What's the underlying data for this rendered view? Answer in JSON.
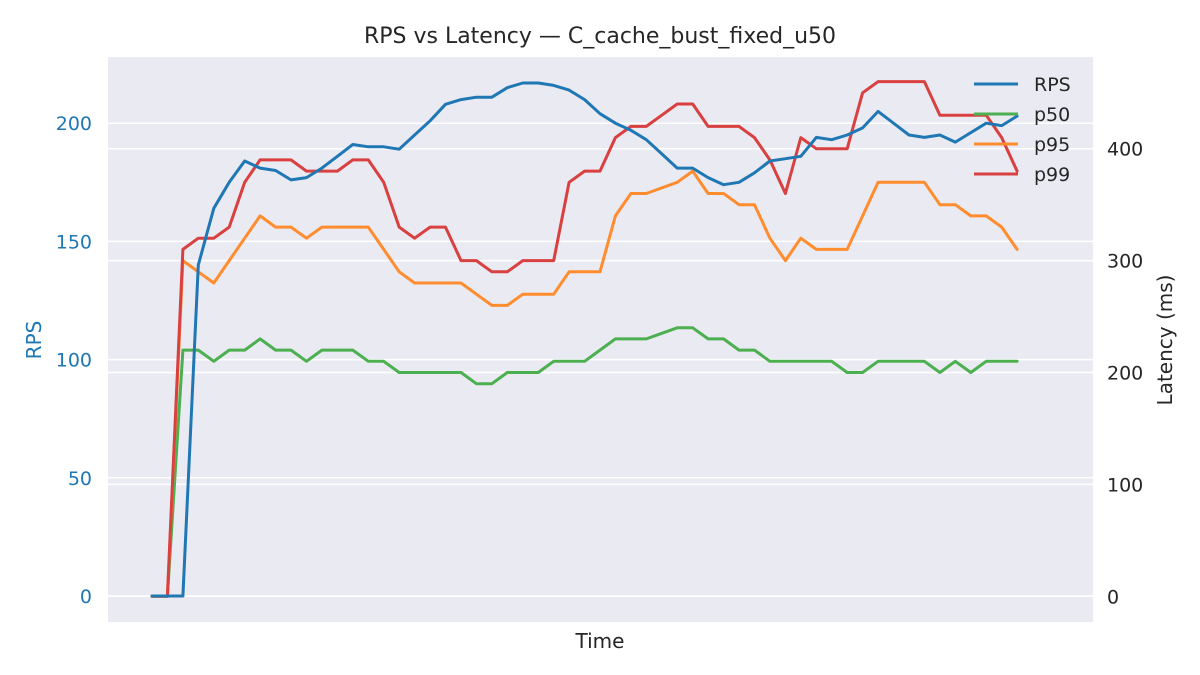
{
  "chart_data": {
    "type": "line",
    "title": "RPS vs Latency — C_cache_bust_fixed_u50",
    "xlabel": "Time",
    "ylabel_left": "RPS",
    "ylabel_right": "Latency (ms)",
    "ylim_left": [
      -11,
      228
    ],
    "ylim_right": [
      -23,
      482
    ],
    "yticks_left": [
      0,
      50,
      100,
      150,
      200
    ],
    "yticks_right": [
      0,
      100,
      200,
      300,
      400
    ],
    "x_ticks_shown": false,
    "grid": true,
    "legend_position": "top-right",
    "colors": {
      "rps": "#1f77b4",
      "p50": "#4caf50",
      "p95": "#ff8c2e",
      "p99": "#d94040",
      "rps_axis": "#1f77b4",
      "plot_bg": "#eaeaf2"
    },
    "x": [
      0,
      1,
      2,
      3,
      4,
      5,
      6,
      7,
      8,
      9,
      10,
      11,
      12,
      13,
      14,
      15,
      16,
      17,
      18,
      19,
      20,
      21,
      22,
      23,
      24,
      25,
      26,
      27,
      28,
      29,
      30,
      31,
      32,
      33,
      34,
      35,
      36,
      37,
      38,
      39,
      40,
      41,
      42,
      43,
      44,
      45,
      46,
      47,
      48,
      49,
      50,
      51,
      52,
      53,
      54,
      55,
      56,
      57,
      58
    ],
    "series": [
      {
        "name": "RPS",
        "axis": "left",
        "values": [
          0,
          0,
          0,
          140,
          164,
          175,
          184,
          181,
          180,
          176,
          177,
          181,
          186,
          191,
          190,
          190,
          189,
          195,
          201,
          208,
          210,
          211,
          211,
          215,
          217,
          217,
          216,
          214,
          210,
          204,
          200,
          197,
          193,
          187,
          181,
          181,
          177,
          174,
          175,
          179,
          184,
          185,
          186,
          194,
          193,
          195,
          198,
          205,
          200,
          195,
          194,
          195,
          192,
          196,
          200,
          199,
          203,
          null,
          null
        ]
      },
      {
        "name": "p50",
        "axis": "right",
        "values": [
          0,
          0,
          220,
          220,
          210,
          220,
          220,
          230,
          220,
          220,
          210,
          220,
          220,
          220,
          210,
          210,
          200,
          200,
          200,
          200,
          200,
          190,
          190,
          200,
          200,
          200,
          210,
          210,
          210,
          220,
          230,
          230,
          230,
          235,
          240,
          240,
          230,
          230,
          220,
          220,
          210,
          210,
          210,
          210,
          210,
          200,
          200,
          210,
          210,
          210,
          210,
          200,
          210,
          200,
          210,
          210,
          210,
          null,
          null
        ]
      },
      {
        "name": "p95",
        "axis": "right",
        "values": [
          0,
          0,
          300,
          290,
          280,
          300,
          320,
          340,
          330,
          330,
          320,
          330,
          330,
          330,
          330,
          310,
          290,
          280,
          280,
          280,
          280,
          270,
          260,
          260,
          270,
          270,
          270,
          290,
          290,
          290,
          340,
          360,
          360,
          365,
          370,
          380,
          360,
          360,
          350,
          350,
          320,
          300,
          320,
          310,
          310,
          310,
          340,
          370,
          370,
          370,
          370,
          350,
          350,
          340,
          340,
          330,
          310,
          null,
          null
        ]
      },
      {
        "name": "p99",
        "axis": "right",
        "values": [
          0,
          0,
          310,
          320,
          320,
          330,
          370,
          390,
          390,
          390,
          380,
          380,
          380,
          390,
          390,
          370,
          330,
          320,
          330,
          330,
          300,
          300,
          290,
          290,
          300,
          300,
          300,
          370,
          380,
          380,
          410,
          420,
          420,
          430,
          440,
          440,
          420,
          420,
          420,
          410,
          390,
          360,
          410,
          400,
          400,
          400,
          450,
          460,
          460,
          460,
          460,
          430,
          430,
          430,
          430,
          410,
          380,
          null,
          null
        ]
      }
    ]
  }
}
